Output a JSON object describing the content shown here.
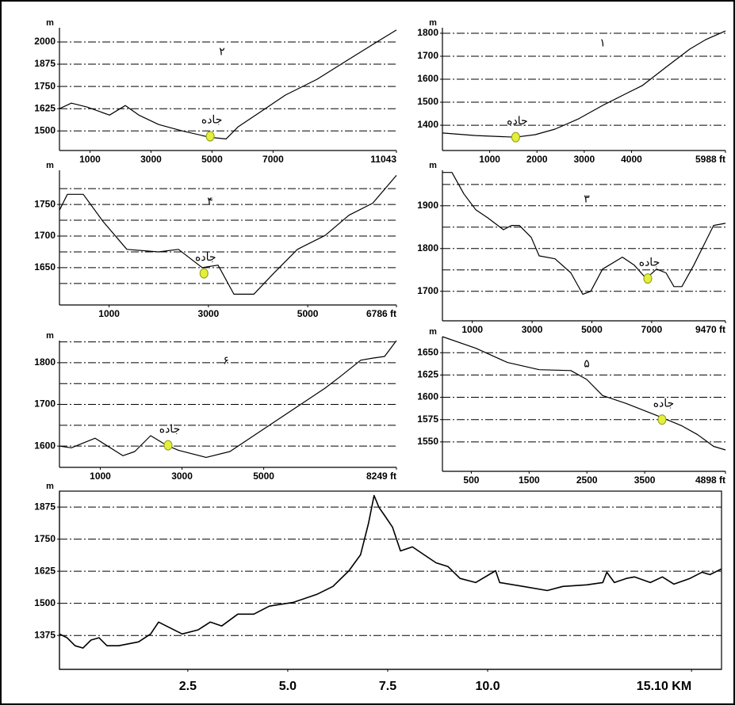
{
  "chart_data": [
    {
      "type": "line",
      "title": "۲",
      "y_unit": "m",
      "color": "#000000",
      "x": [
        0,
        390,
        910,
        1640,
        2160,
        2600,
        3250,
        4030,
        4940,
        5460,
        5850,
        6630,
        7400,
        8440,
        9480,
        10520,
        11043
      ],
      "values": [
        1625,
        1656,
        1634,
        1589,
        1643,
        1589,
        1536,
        1500,
        1464,
        1455,
        1522,
        1612,
        1701,
        1790,
        1902,
        2013,
        2067
      ],
      "xlim": [
        0,
        11043
      ],
      "ylim": [
        1390,
        2080
      ],
      "xticks": [
        1000,
        3000,
        5000,
        7000,
        11043
      ],
      "yticks": [
        1500,
        1625,
        1750,
        1875,
        2000
      ],
      "grid": true,
      "annotation": {
        "text": "جاده",
        "x": 4940,
        "y": 1470,
        "color": "#e3ef3a"
      }
    },
    {
      "type": "line",
      "title": "۱",
      "y_unit": "m",
      "color": "#000000",
      "x": [
        0,
        704,
        1543,
        1962,
        2381,
        2884,
        3388,
        3891,
        4226,
        4729,
        5232,
        5568,
        5988
      ],
      "values": [
        1366,
        1355,
        1348,
        1359,
        1383,
        1428,
        1486,
        1538,
        1572,
        1652,
        1731,
        1772,
        1810
      ],
      "xlim": [
        0,
        5988
      ],
      "ylim": [
        1290,
        1824
      ],
      "xticks": [
        1000,
        2000,
        3000,
        4000,
        {
          "value": 5988,
          "label": "5988 ft"
        }
      ],
      "yticks": [
        1400,
        1500,
        1600,
        1700,
        1800
      ],
      "grid": true,
      "annotation": {
        "text": "جاده",
        "x": 1550,
        "y": 1348,
        "color": "#e3ef3a"
      }
    },
    {
      "type": "line",
      "title": "۴",
      "y_unit": "m",
      "color": "#000000",
      "x": [
        0,
        160,
        479,
        878,
        1357,
        1996,
        2396,
        2875,
        3194,
        3513,
        3913,
        4312,
        4791,
        5350,
        5829,
        6308,
        6786
      ],
      "values": [
        1741,
        1766,
        1766,
        1723,
        1679,
        1675,
        1679,
        1650,
        1654,
        1608,
        1608,
        1641,
        1679,
        1701,
        1733,
        1752,
        1796
      ],
      "xlim": [
        0,
        6786
      ],
      "ylim": [
        1591,
        1804
      ],
      "xticks": [
        1000,
        3000,
        5000,
        {
          "value": 6786,
          "label": "6786 ft"
        }
      ],
      "yticks": [
        1650,
        1700,
        1750
      ],
      "ygrid": [
        1625,
        1650,
        1675,
        1700,
        1725,
        1750,
        1775
      ],
      "grid": true,
      "annotation": {
        "text": "جاده",
        "x": 2910,
        "y": 1641,
        "color": "#e3ef3a"
      }
    },
    {
      "type": "line",
      "title": "۳",
      "y_unit": "m",
      "color": "#000000",
      "x": [
        0,
        318,
        716,
        1114,
        1512,
        2043,
        2308,
        2573,
        2971,
        3236,
        3767,
        4297,
        4695,
        4961,
        5359,
        6022,
        6420,
        6818,
        7163,
        7481,
        7746,
        8012,
        8410,
        9073,
        9470
      ],
      "values": [
        1978,
        1978,
        1928,
        1891,
        1872,
        1844,
        1854,
        1854,
        1826,
        1783,
        1776,
        1743,
        1693,
        1700,
        1752,
        1780,
        1761,
        1730,
        1752,
        1743,
        1711,
        1711,
        1761,
        1854,
        1859
      ],
      "xlim": [
        0,
        9470
      ],
      "ylim": [
        1631,
        1983
      ],
      "xticks": [
        1000,
        3000,
        5000,
        7000,
        {
          "value": 9470,
          "label": "9470 ft"
        }
      ],
      "yticks": [
        1700,
        1800,
        1900
      ],
      "ygrid": [
        1700,
        1750,
        1800,
        1850,
        1900,
        1950
      ],
      "grid": true,
      "annotation": {
        "text": "جاده",
        "x": 6870,
        "y": 1730,
        "color": "#e3ef3a"
      }
    },
    {
      "type": "line",
      "title": "۶",
      "y_unit": "m",
      "color": "#000000",
      "x": [
        0,
        291,
        874,
        1553,
        1844,
        2232,
        2620,
        2911,
        3591,
        4173,
        4755,
        5338,
        5920,
        6502,
        6891,
        7376,
        7667,
        7958,
        8249
      ],
      "values": [
        1600,
        1596,
        1619,
        1577,
        1587,
        1625,
        1602,
        1590,
        1573,
        1587,
        1625,
        1663,
        1701,
        1739,
        1768,
        1806,
        1811,
        1815,
        1853
      ],
      "xlim": [
        0,
        8249
      ],
      "ylim": [
        1549,
        1853
      ],
      "xticks": [
        1000,
        3000,
        5000,
        {
          "value": 8249,
          "label": "8249 ft"
        }
      ],
      "yticks": [
        1600,
        1700,
        1800
      ],
      "ygrid": [
        1600,
        1650,
        1700,
        1750,
        1800,
        1850
      ],
      "grid": true,
      "annotation": {
        "text": "جاده",
        "x": 2659,
        "y": 1602,
        "color": "#e3ef3a"
      }
    },
    {
      "type": "line",
      "title": "۵",
      "y_unit": "m",
      "color": "#000000",
      "x": [
        0,
        576,
        1125,
        1674,
        2223,
        2497,
        2771,
        3183,
        3732,
        4143,
        4418,
        4692,
        4898
      ],
      "values": [
        1668,
        1655,
        1639,
        1631,
        1630,
        1620,
        1602,
        1593,
        1579,
        1568,
        1558,
        1545,
        1541
      ],
      "xlim": [
        0,
        4898
      ],
      "ylim": [
        1517,
        1668
      ],
      "xticks": [
        500,
        1500,
        2500,
        3500,
        {
          "value": 4898,
          "label": "4898 ft"
        }
      ],
      "yticks": [
        1550,
        1575,
        1600,
        1625,
        1650
      ],
      "grid": true,
      "annotation": {
        "text": "جاده",
        "x": 3800,
        "y": 1575,
        "color": "#e3ef3a"
      }
    },
    {
      "type": "line",
      "y_unit": "m",
      "color": "#000000",
      "x": [
        -0.71,
        -0.52,
        -0.32,
        -0.12,
        0.08,
        0.28,
        0.48,
        0.77,
        1.27,
        1.57,
        1.77,
        1.96,
        2.36,
        2.76,
        3.06,
        3.35,
        3.75,
        4.15,
        4.54,
        5.14,
        5.73,
        6.13,
        6.53,
        6.82,
        7.02,
        7.16,
        7.28,
        7.42,
        7.62,
        7.82,
        8.12,
        8.41,
        8.71,
        9.01,
        9.31,
        9.7,
        10.2,
        10.3,
        10.89,
        11.49,
        11.88,
        12.48,
        12.88,
        12.98,
        13.17,
        13.47,
        13.67,
        14.07,
        14.37,
        14.66,
        15.06,
        15.36,
        15.56,
        15.85
      ],
      "values": [
        1381,
        1366,
        1335,
        1326,
        1357,
        1366,
        1335,
        1335,
        1350,
        1381,
        1427,
        1412,
        1381,
        1397,
        1427,
        1412,
        1458,
        1458,
        1489,
        1504,
        1535,
        1566,
        1627,
        1689,
        1812,
        1920,
        1874,
        1843,
        1797,
        1704,
        1720,
        1689,
        1658,
        1643,
        1597,
        1581,
        1627,
        1581,
        1566,
        1550,
        1566,
        1572,
        1581,
        1621,
        1581,
        1597,
        1603,
        1581,
        1603,
        1575,
        1597,
        1621,
        1612,
        1634
      ],
      "xlim": [
        -0.71,
        15.85
      ],
      "ylim": [
        1243,
        1937
      ],
      "xticks": [
        2.5,
        {
          "value": 5,
          "label": "5.0"
        },
        7.5,
        {
          "value": 10,
          "label": "10.0"
        },
        {
          "value": 15.1,
          "label": "15.10 KM"
        }
      ],
      "yticks": [
        1375,
        1500,
        1625,
        1750,
        1875
      ],
      "grid": true
    }
  ]
}
